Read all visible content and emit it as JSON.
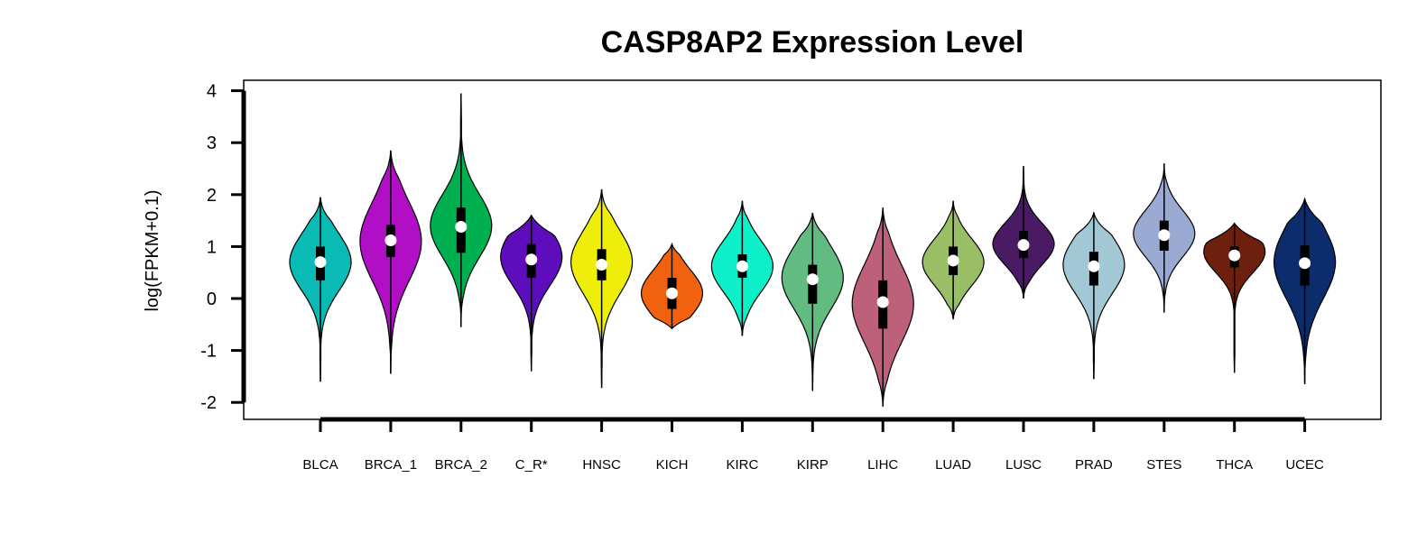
{
  "chart_data": {
    "type": "violin",
    "title": "CASP8AP2 Expression Level",
    "xlabel": "",
    "ylabel": "log(FPKM+0.1)",
    "ylim": [
      -2.3,
      4.2
    ],
    "yticks": [
      "-2",
      "-1",
      "0",
      "1",
      "2",
      "3",
      "4"
    ],
    "ytick_values": [
      -2,
      -1,
      0,
      1,
      2,
      3,
      4
    ],
    "grid": false,
    "legend": "none",
    "categories": [
      "BLCA",
      "BRCA_1",
      "BRCA_2",
      "C_R*",
      "HNSC",
      "KICH",
      "KIRC",
      "KIRP",
      "LIHC",
      "LUAD",
      "LUSC",
      "PRAD",
      "STES",
      "THCA",
      "UCEC"
    ],
    "series": [
      {
        "category": "BLCA",
        "color": "#0ABAB5",
        "min": -1.6,
        "q1": 0.35,
        "median": 0.7,
        "q3": 1.0,
        "max": 1.95,
        "peak": 0.7,
        "spread": 0.55
      },
      {
        "category": "BRCA_1",
        "color": "#B00FC6",
        "min": -1.45,
        "q1": 0.8,
        "median": 1.12,
        "q3": 1.42,
        "max": 2.85,
        "peak": 1.1,
        "spread": 0.75
      },
      {
        "category": "BRCA_2",
        "color": "#00B050",
        "min": -0.55,
        "q1": 0.88,
        "median": 1.38,
        "q3": 1.75,
        "max": 3.95,
        "peak": 1.4,
        "spread": 0.6
      },
      {
        "category": "C_R*",
        "color": "#5D0DBB",
        "min": -1.4,
        "q1": 0.4,
        "median": 0.75,
        "q3": 1.05,
        "max": 1.6,
        "peak": 0.8,
        "spread": 0.55
      },
      {
        "category": "HNSC",
        "color": "#EEEE0A",
        "min": -1.72,
        "q1": 0.35,
        "median": 0.65,
        "q3": 0.95,
        "max": 2.1,
        "peak": 0.7,
        "spread": 0.6
      },
      {
        "category": "KICH",
        "color": "#F0620F",
        "min": -0.58,
        "q1": -0.2,
        "median": 0.1,
        "q3": 0.4,
        "max": 1.05,
        "peak": 0.1,
        "spread": 0.45
      },
      {
        "category": "KIRC",
        "color": "#0DF0C9",
        "min": -0.72,
        "q1": 0.4,
        "median": 0.62,
        "q3": 0.85,
        "max": 1.88,
        "peak": 0.62,
        "spread": 0.5
      },
      {
        "category": "KIRP",
        "color": "#62BB80",
        "min": -1.78,
        "q1": -0.1,
        "median": 0.37,
        "q3": 0.65,
        "max": 1.65,
        "peak": 0.4,
        "spread": 0.6
      },
      {
        "category": "LIHC",
        "color": "#BD6079",
        "min": -2.08,
        "q1": -0.58,
        "median": -0.07,
        "q3": 0.35,
        "max": 1.75,
        "peak": -0.1,
        "spread": 0.75
      },
      {
        "category": "LUAD",
        "color": "#99BE66",
        "min": -0.4,
        "q1": 0.45,
        "median": 0.73,
        "q3": 1.0,
        "max": 1.88,
        "peak": 0.7,
        "spread": 0.45
      },
      {
        "category": "LUSC",
        "color": "#4A1B64",
        "min": 0.0,
        "q1": 0.78,
        "median": 1.03,
        "q3": 1.3,
        "max": 2.55,
        "peak": 1.05,
        "spread": 0.4
      },
      {
        "category": "PRAD",
        "color": "#A3C8D5",
        "min": -1.55,
        "q1": 0.25,
        "median": 0.62,
        "q3": 0.9,
        "max": 1.65,
        "peak": 0.65,
        "spread": 0.55
      },
      {
        "category": "STES",
        "color": "#9BAAD3",
        "min": -0.27,
        "q1": 0.92,
        "median": 1.22,
        "q3": 1.5,
        "max": 2.6,
        "peak": 1.25,
        "spread": 0.45
      },
      {
        "category": "THCA",
        "color": "#6C200D",
        "min": -1.43,
        "q1": 0.6,
        "median": 0.83,
        "q3": 1.0,
        "max": 1.45,
        "peak": 0.9,
        "spread": 0.4
      },
      {
        "category": "UCEC",
        "color": "#0D2C6C",
        "min": -1.65,
        "q1": 0.25,
        "median": 0.68,
        "q3": 1.02,
        "max": 1.92,
        "peak": 0.7,
        "spread": 0.7
      }
    ]
  }
}
